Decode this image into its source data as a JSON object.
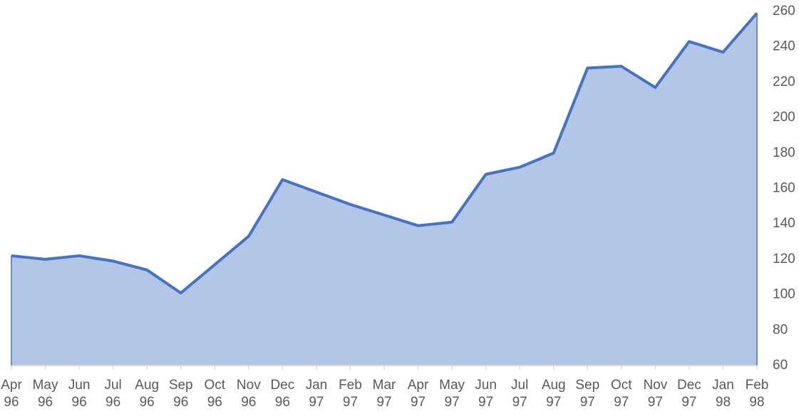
{
  "chart_data": {
    "type": "area",
    "categories": [
      "Apr 96",
      "May 96",
      "Jun 96",
      "Jul 96",
      "Aug 96",
      "Sep 96",
      "Oct 96",
      "Nov 96",
      "Dec 96",
      "Jan 97",
      "Feb 97",
      "Mar 97",
      "Apr 97",
      "May 97",
      "Jun 97",
      "Jul 97",
      "Aug 97",
      "Sep 97",
      "Oct 97",
      "Nov 97",
      "Dec 97",
      "Jan 98",
      "Feb 98"
    ],
    "values": [
      122,
      120,
      122,
      119,
      114,
      101,
      117,
      133,
      165,
      158,
      151,
      145,
      139,
      141,
      168,
      172,
      180,
      228,
      229,
      217,
      243,
      237,
      259
    ],
    "color": "#4472c4",
    "fill_color": "#b4c6e7",
    "ylim": [
      60,
      260
    ],
    "yticks": [
      60,
      80,
      100,
      120,
      140,
      160,
      180,
      200,
      220,
      240,
      260
    ],
    "y_axis_side": "right"
  }
}
